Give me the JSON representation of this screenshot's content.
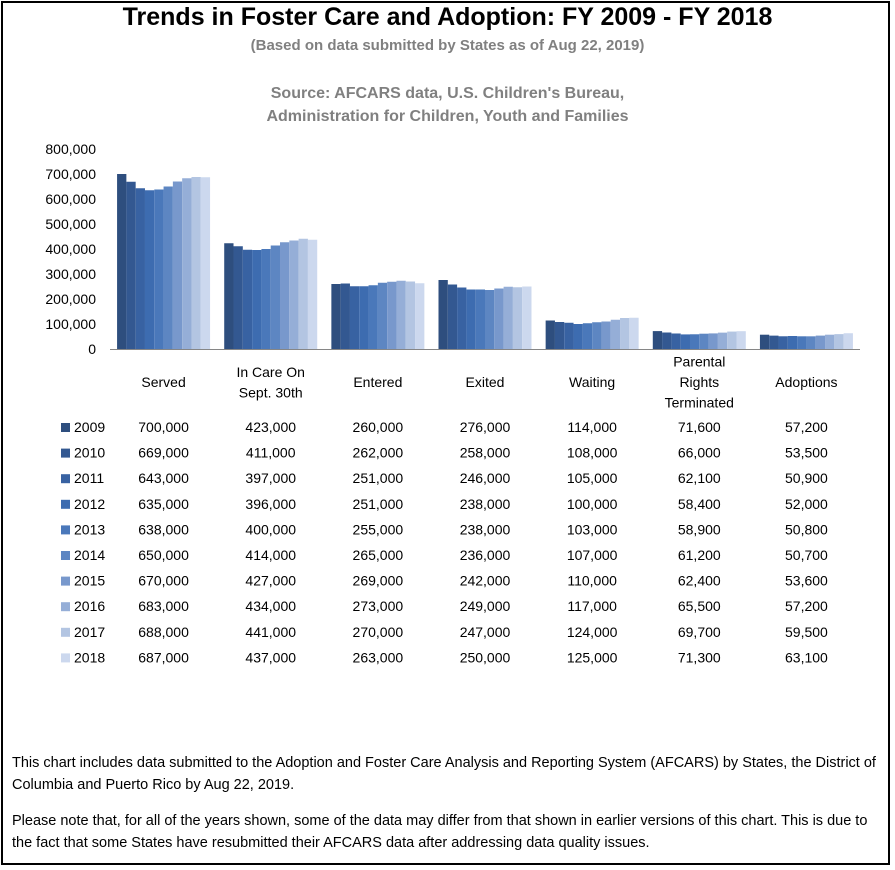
{
  "title": "Trends in Foster Care and Adoption: FY 2009 - FY 2018",
  "subtitle": "(Based on data submitted by States as of Aug 22, 2019)",
  "source_line1": "Source: AFCARS data, U.S. Children's Bureau,",
  "source_line2": "Administration for Children, Youth and Families",
  "note1": "This chart includes data submitted to the Adoption and Foster Care Analysis and Reporting System (AFCARS) by States, the District of Columbia and Puerto Rico by Aug 22, 2019.",
  "note2": "Please note that, for all of the years shown, some of the data may differ from that shown in earlier versions of this chart.  This is due to the fact that some States have resubmitted their AFCARS data after addressing data quality issues.",
  "colors": [
    "#2e4e7e",
    "#335891",
    "#3862a2",
    "#3d6cb0",
    "#4a78ba",
    "#5d86c2",
    "#7898cc",
    "#95aed7",
    "#b3c5e2",
    "#ccd8ee"
  ],
  "chart_data": {
    "type": "bar",
    "title": "Trends in Foster Care and Adoption: FY 2009 - FY 2018",
    "xlabel": "",
    "ylabel": "",
    "ylim": [
      0,
      800000
    ],
    "yticks": [
      0,
      100000,
      200000,
      300000,
      400000,
      500000,
      600000,
      700000,
      800000
    ],
    "ytick_labels": [
      "0",
      "100,000",
      "200,000",
      "300,000",
      "400,000",
      "500,000",
      "600,000",
      "700,000",
      "800,000"
    ],
    "categories": [
      [
        "Served"
      ],
      [
        "In Care On",
        "Sept. 30th"
      ],
      [
        "Entered"
      ],
      [
        "Exited"
      ],
      [
        "Waiting"
      ],
      [
        "Parental",
        "Rights",
        "Terminated"
      ],
      [
        "Adoptions"
      ]
    ],
    "legend_position": "data-table",
    "series": [
      {
        "name": "2009",
        "values": [
          700000,
          423000,
          260000,
          276000,
          114000,
          71600,
          57200
        ],
        "labels": [
          "700,000",
          "423,000",
          "260,000",
          "276,000",
          "114,000",
          "71,600",
          "57,200"
        ]
      },
      {
        "name": "2010",
        "values": [
          669000,
          411000,
          262000,
          258000,
          108000,
          66000,
          53500
        ],
        "labels": [
          "669,000",
          "411,000",
          "262,000",
          "258,000",
          "108,000",
          "66,000",
          "53,500"
        ]
      },
      {
        "name": "2011",
        "values": [
          643000,
          397000,
          251000,
          246000,
          105000,
          62100,
          50900
        ],
        "labels": [
          "643,000",
          "397,000",
          "251,000",
          "246,000",
          "105,000",
          "62,100",
          "50,900"
        ]
      },
      {
        "name": "2012",
        "values": [
          635000,
          396000,
          251000,
          238000,
          100000,
          58400,
          52000
        ],
        "labels": [
          "635,000",
          "396,000",
          "251,000",
          "238,000",
          "100,000",
          "58,400",
          "52,000"
        ]
      },
      {
        "name": "2013",
        "values": [
          638000,
          400000,
          255000,
          238000,
          103000,
          58900,
          50800
        ],
        "labels": [
          "638,000",
          "400,000",
          "255,000",
          "238,000",
          "103,000",
          "58,900",
          "50,800"
        ]
      },
      {
        "name": "2014",
        "values": [
          650000,
          414000,
          265000,
          236000,
          107000,
          61200,
          50700
        ],
        "labels": [
          "650,000",
          "414,000",
          "265,000",
          "236,000",
          "107,000",
          "61,200",
          "50,700"
        ]
      },
      {
        "name": "2015",
        "values": [
          670000,
          427000,
          269000,
          242000,
          110000,
          62400,
          53600
        ],
        "labels": [
          "670,000",
          "427,000",
          "269,000",
          "242,000",
          "110,000",
          "62,400",
          "53,600"
        ]
      },
      {
        "name": "2016",
        "values": [
          683000,
          434000,
          273000,
          249000,
          117000,
          65500,
          57200
        ],
        "labels": [
          "683,000",
          "434,000",
          "273,000",
          "249,000",
          "117,000",
          "65,500",
          "57,200"
        ]
      },
      {
        "name": "2017",
        "values": [
          688000,
          441000,
          270000,
          247000,
          124000,
          69700,
          59500
        ],
        "labels": [
          "688,000",
          "441,000",
          "270,000",
          "247,000",
          "124,000",
          "69,700",
          "59,500"
        ]
      },
      {
        "name": "2018",
        "values": [
          687000,
          437000,
          263000,
          250000,
          125000,
          71300,
          63100
        ],
        "labels": [
          "687,000",
          "437,000",
          "263,000",
          "250,000",
          "125,000",
          "71,300",
          "63,100"
        ]
      }
    ]
  }
}
